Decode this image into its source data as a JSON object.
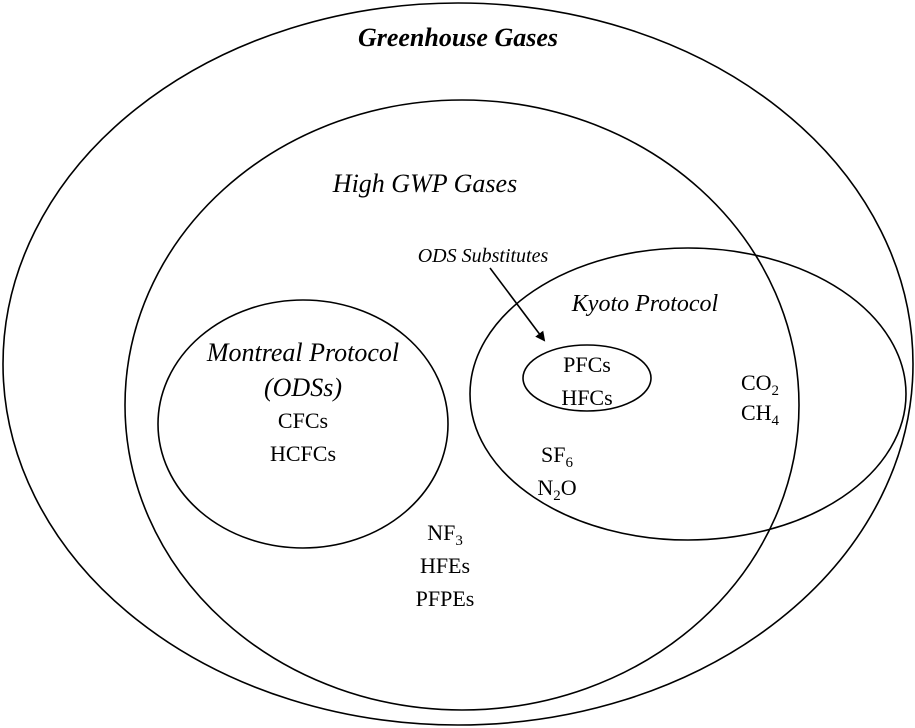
{
  "title": "Greenhouse Gases",
  "high_gwp": {
    "label": "High GWP Gases",
    "items": [
      {
        "text": "NF",
        "sub": "3"
      },
      {
        "text": "HFEs"
      },
      {
        "text": "PFPEs"
      }
    ]
  },
  "montreal": {
    "label": "Montreal Protocol",
    "label2": "(ODSs)",
    "items": [
      {
        "text": "CFCs"
      },
      {
        "text": "HCFCs"
      }
    ]
  },
  "kyoto": {
    "label": "Kyoto Protocol",
    "items": [
      {
        "text": "SF",
        "sub": "6"
      },
      {
        "text": "N",
        "sub": "2",
        "after": "O"
      }
    ],
    "outside_items": [
      {
        "text": "CO",
        "sub": "2"
      },
      {
        "text": "CH",
        "sub": "4"
      }
    ]
  },
  "ods_substitutes": {
    "label": "ODS Substitutes",
    "items": [
      {
        "text": "PFCs"
      },
      {
        "text": "HFCs"
      }
    ]
  }
}
